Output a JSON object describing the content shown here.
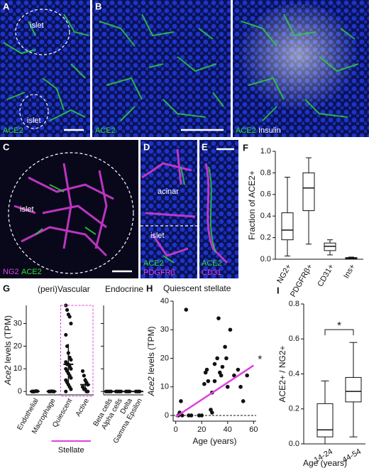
{
  "panels": {
    "A": {
      "label": "A",
      "annotations": [
        "islet",
        "islet"
      ],
      "stains": [
        "ACE2"
      ]
    },
    "B": {
      "label": "B",
      "stains": [
        "ACE2"
      ]
    },
    "B2": {
      "stains": [
        "ACE2",
        "Insulin"
      ]
    },
    "C": {
      "label": "C",
      "annotations": [
        "islet"
      ],
      "stains": [
        "NG2",
        "ACE2"
      ]
    },
    "D": {
      "label": "D",
      "annotations": [
        "acinar",
        "islet"
      ],
      "stains": [
        "ACE2",
        "PDGFRβ"
      ]
    },
    "E": {
      "label": "E",
      "stains": [
        "ACE2",
        "CD31"
      ]
    }
  },
  "chart_data": [
    {
      "panel_label": "F",
      "type": "box",
      "ylabel": "Fraction of ACE2+",
      "categories": [
        "NG2+",
        "PDGFRβ+",
        "CD31+",
        "Ins+"
      ],
      "boxes": [
        {
          "min": 0.03,
          "q1": 0.18,
          "median": 0.27,
          "q3": 0.43,
          "max": 0.76
        },
        {
          "min": 0.14,
          "q1": 0.45,
          "median": 0.66,
          "q3": 0.8,
          "max": 0.94
        },
        {
          "min": 0.04,
          "q1": 0.08,
          "median": 0.12,
          "q3": 0.15,
          "max": 0.18
        },
        {
          "min": 0,
          "q1": 0.005,
          "median": 0.01,
          "q3": 0.015,
          "max": 0.02
        }
      ],
      "ylim": [
        0,
        1
      ],
      "yticks": [
        {
          "value": 0,
          "label": "0.0"
        },
        0.2,
        0.4,
        0.6,
        0.8,
        {
          "value": 1,
          "label": "1.0"
        }
      ]
    },
    {
      "panel_label": "G",
      "type": "dot",
      "ylabel_gene": "Ace2",
      "ylabel_unit": "levels (TPM)",
      "ylim": [
        -1.5,
        38
      ],
      "yticks": [
        0,
        10,
        20,
        30
      ],
      "groups": [
        {
          "title": "(peri)Vascular",
          "categories": [
            "Endothelial",
            "Macrophage",
            "Quiescent",
            "Active"
          ],
          "points": [
            [
              0,
              0,
              0,
              0.2,
              0.1,
              0,
              0
            ],
            [
              0,
              0,
              0.1,
              0,
              0
            ],
            [
              38,
              36,
              34,
              33,
              30,
              25,
              20,
              17,
              15,
              14,
              13,
              12,
              12,
              11,
              10,
              10,
              9,
              8,
              7,
              6,
              5,
              4,
              3,
              2,
              1,
              0
            ],
            [
              9,
              7,
              5,
              4,
              3,
              2,
              1,
              1,
              0,
              0
            ]
          ],
          "mean": [
            0.05,
            0.02,
            12,
            3
          ],
          "sd": [
            0.1,
            0.05,
            9,
            3
          ]
        },
        {
          "title": "Endocrine",
          "categories": [
            "Beta cells",
            "Alpha cells",
            "Delta",
            "Gamma Epsilon"
          ],
          "points": [
            [
              0,
              0,
              0,
              0,
              0
            ],
            [
              0,
              0,
              0,
              0,
              0
            ],
            [
              0,
              0,
              0,
              0
            ],
            [
              0,
              0,
              0,
              0
            ]
          ],
          "mean": [
            0,
            0,
            0,
            0
          ],
          "sd": [
            0,
            0,
            0,
            0
          ]
        }
      ],
      "stellate_label": "Stellate",
      "stellate_categories": [
        2,
        3
      ],
      "highlight_color": "#e040e0"
    },
    {
      "panel_label": "H",
      "type": "scatter",
      "title": "Quiescent stellate",
      "xlabel": "Age (years)",
      "ylabel_gene": "Ace2",
      "ylabel_unit": "levels (TPM)",
      "x": [
        2,
        3,
        4,
        5,
        8,
        10,
        12,
        18,
        20,
        22,
        23,
        24,
        25,
        27,
        28,
        28,
        30,
        30,
        32,
        33,
        34,
        35,
        36,
        38,
        39,
        40,
        42,
        45,
        48,
        50,
        52,
        55
      ],
      "y": [
        0,
        1,
        5,
        0,
        37,
        0,
        0,
        0,
        0,
        11,
        15,
        16,
        12,
        2,
        8,
        1,
        12,
        18,
        20,
        34,
        15,
        14,
        17,
        24,
        20,
        10,
        30,
        14,
        16,
        10,
        5,
        14
      ],
      "color": "#111111",
      "fit": {
        "x": [
          0,
          60
        ],
        "y": [
          -0.5,
          17.5
        ],
        "color": "#e040e0"
      },
      "significance": "*",
      "zero_line": true,
      "xlim": [
        -2,
        62
      ],
      "xticks": [
        0,
        20,
        40,
        60
      ],
      "ylim": [
        -2,
        40
      ],
      "yticks": [
        0,
        10,
        20,
        30,
        40
      ]
    },
    {
      "panel_label": "I",
      "type": "box",
      "ylabel": "ACE2+ / NG2+",
      "xlabel": "Age (years)",
      "categories": [
        "14-24",
        "44-54"
      ],
      "boxes": [
        {
          "min": 0,
          "q1": 0.04,
          "median": 0.08,
          "q3": 0.23,
          "max": 0.36
        },
        {
          "min": 0.04,
          "q1": 0.24,
          "median": 0.3,
          "q3": 0.38,
          "max": 0.58
        }
      ],
      "significance": "*",
      "ylim": [
        0,
        0.8
      ],
      "yticks": [
        {
          "value": 0,
          "label": "0.0"
        },
        0.2,
        0.4,
        0.6,
        0.8
      ]
    }
  ]
}
